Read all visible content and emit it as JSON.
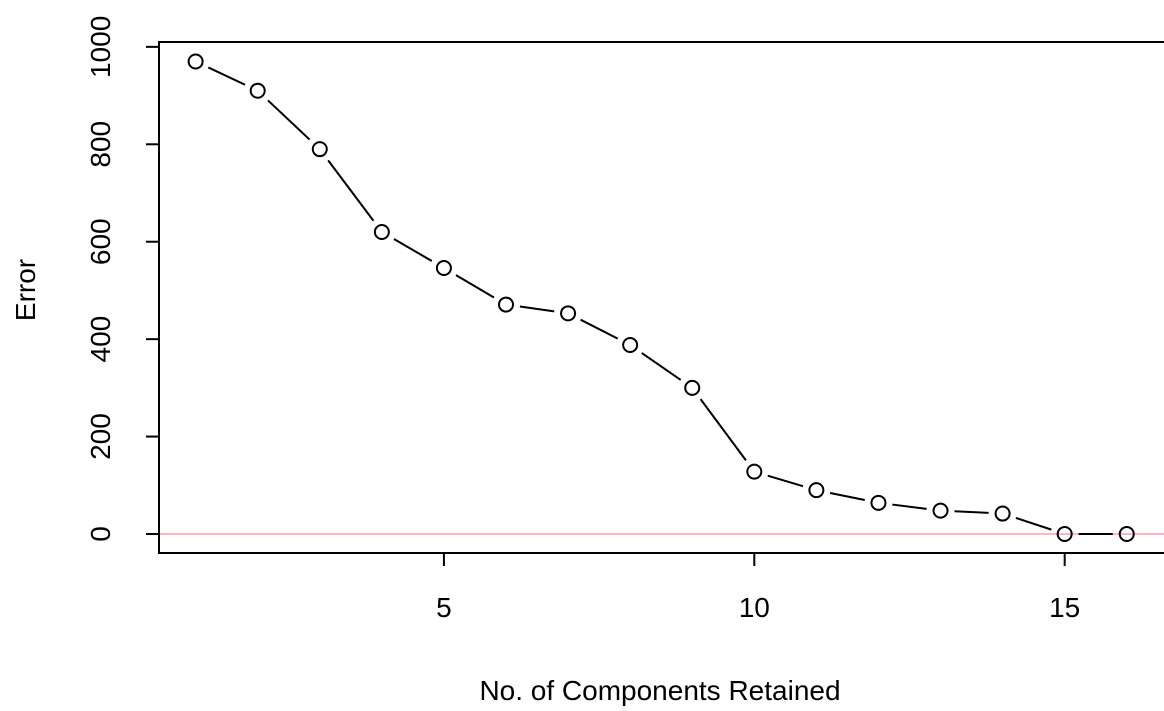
{
  "chart_data": {
    "type": "line",
    "title": "",
    "xlabel": "No. of Components Retained",
    "ylabel": "Error",
    "xlim": [
      0.41,
      16.6
    ],
    "ylim": [
      -39,
      1010
    ],
    "x_ticks": [
      5,
      10,
      15
    ],
    "y_ticks": [
      0,
      200,
      400,
      600,
      800,
      1000
    ],
    "grid": false,
    "series": [
      {
        "x": [
          1,
          2,
          3,
          4,
          5,
          6,
          7,
          8,
          9,
          10,
          11,
          12,
          13,
          14,
          15,
          16
        ],
        "y": [
          970,
          910,
          790,
          620,
          546,
          471,
          453,
          388,
          300,
          128,
          90,
          64,
          48,
          42,
          0,
          0
        ],
        "style": "line with open circle markers",
        "color": "#000000"
      }
    ],
    "reference_line": {
      "y": 0,
      "color": "#ffb6c1"
    }
  }
}
